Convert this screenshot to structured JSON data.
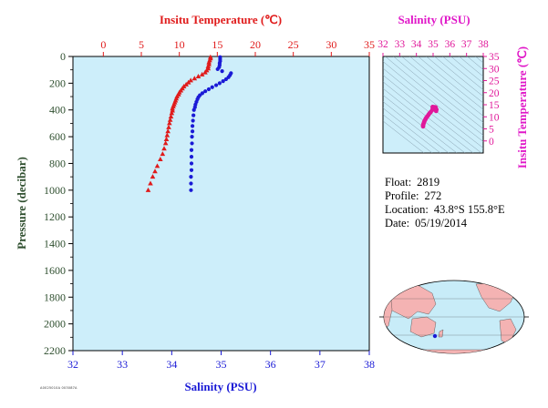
{
  "colors": {
    "temperature": "#e01b1b",
    "salinity": "#1a1ad6",
    "ts": "#e0189a",
    "pressure_axis": "#2f4f2f",
    "plot_bg": "#cdeefa",
    "land": "#f4b3b3",
    "ocean": "#c8ecf8"
  },
  "chart_data": [
    {
      "type": "scatter",
      "name": "profile",
      "title": "",
      "top_axis": {
        "label": "Insitu Temperature (℃)",
        "range": [
          -4,
          35
        ],
        "ticks": [
          0,
          5,
          10,
          15,
          20,
          25,
          30,
          35
        ]
      },
      "bottom_axis": {
        "label": "Salinity (PSU)",
        "range": [
          32,
          38
        ],
        "ticks": [
          32,
          33,
          34,
          35,
          36,
          37,
          38
        ]
      },
      "y_axis": {
        "label": "Pressure (decibar)",
        "range": [
          0,
          2200
        ],
        "inverted": true,
        "ticks": [
          0,
          200,
          400,
          600,
          800,
          1000,
          1200,
          1400,
          1600,
          1800,
          2000,
          2200
        ]
      },
      "grid": false,
      "series": [
        {
          "name": "Insitu Temperature (℃)",
          "axis": "top",
          "marker": "triangle",
          "points": [
            [
              14.1,
              5
            ],
            [
              14.1,
              15
            ],
            [
              14.0,
              30
            ],
            [
              13.9,
              45
            ],
            [
              13.9,
              60
            ],
            [
              13.8,
              75
            ],
            [
              13.8,
              90
            ],
            [
              13.6,
              105
            ],
            [
              13.4,
              120
            ],
            [
              13.0,
              135
            ],
            [
              12.5,
              150
            ],
            [
              12.0,
              165
            ],
            [
              11.5,
              180
            ],
            [
              11.2,
              195
            ],
            [
              10.9,
              210
            ],
            [
              10.6,
              225
            ],
            [
              10.4,
              240
            ],
            [
              10.2,
              255
            ],
            [
              10.0,
              270
            ],
            [
              9.9,
              285
            ],
            [
              9.7,
              300
            ],
            [
              9.6,
              315
            ],
            [
              9.5,
              330
            ],
            [
              9.4,
              345
            ],
            [
              9.3,
              360
            ],
            [
              9.2,
              375
            ],
            [
              9.1,
              390
            ],
            [
              9.1,
              405
            ],
            [
              9.0,
              425
            ],
            [
              8.9,
              450
            ],
            [
              8.8,
              475
            ],
            [
              8.7,
              500
            ],
            [
              8.6,
              530
            ],
            [
              8.5,
              560
            ],
            [
              8.4,
              590
            ],
            [
              8.3,
              620
            ],
            [
              8.2,
              650
            ],
            [
              8.0,
              690
            ],
            [
              7.8,
              730
            ],
            [
              7.5,
              770
            ],
            [
              7.1,
              820
            ],
            [
              6.8,
              860
            ],
            [
              6.5,
              900
            ],
            [
              6.2,
              950
            ],
            [
              5.9,
              1000
            ]
          ]
        },
        {
          "name": "Salinity (PSU)",
          "axis": "bottom",
          "marker": "circle",
          "points": [
            [
              34.98,
              5
            ],
            [
              34.98,
              20
            ],
            [
              34.98,
              35
            ],
            [
              34.97,
              50
            ],
            [
              34.97,
              65
            ],
            [
              34.96,
              80
            ],
            [
              34.93,
              95
            ],
            [
              35.02,
              110
            ],
            [
              35.2,
              125
            ],
            [
              35.18,
              140
            ],
            [
              35.15,
              155
            ],
            [
              35.1,
              170
            ],
            [
              35.04,
              185
            ],
            [
              34.97,
              200
            ],
            [
              34.9,
              215
            ],
            [
              34.82,
              230
            ],
            [
              34.75,
              245
            ],
            [
              34.68,
              260
            ],
            [
              34.62,
              275
            ],
            [
              34.57,
              290
            ],
            [
              34.54,
              305
            ],
            [
              34.52,
              320
            ],
            [
              34.5,
              340
            ],
            [
              34.48,
              360
            ],
            [
              34.47,
              380
            ],
            [
              34.45,
              400
            ],
            [
              34.44,
              440
            ],
            [
              34.43,
              480
            ],
            [
              34.42,
              520
            ],
            [
              34.42,
              560
            ],
            [
              34.41,
              600
            ],
            [
              34.41,
              650
            ],
            [
              34.4,
              700
            ],
            [
              34.4,
              750
            ],
            [
              34.4,
              800
            ],
            [
              34.4,
              850
            ],
            [
              34.39,
              900
            ],
            [
              34.39,
              950
            ],
            [
              34.39,
              1000
            ]
          ]
        }
      ]
    },
    {
      "type": "scatter",
      "name": "ts-diagram",
      "title": "",
      "top_axis": {
        "label": "Salinity (PSU)",
        "range": [
          32,
          38
        ],
        "ticks": [
          32,
          33,
          34,
          35,
          36,
          37,
          38
        ]
      },
      "right_axis": {
        "label": "Insitu Temperature (℃)",
        "range": [
          -5,
          35
        ],
        "ticks": [
          0,
          5,
          10,
          15,
          20,
          25,
          30,
          35
        ]
      },
      "grid": false,
      "points": [
        [
          34.4,
          6.0
        ],
        [
          34.4,
          6.5
        ],
        [
          34.42,
          7.0
        ],
        [
          34.45,
          7.6
        ],
        [
          34.48,
          8.2
        ],
        [
          34.52,
          8.7
        ],
        [
          34.56,
          9.2
        ],
        [
          34.6,
          9.7
        ],
        [
          34.66,
          10.2
        ],
        [
          34.72,
          10.8
        ],
        [
          34.78,
          11.4
        ],
        [
          34.86,
          12.0
        ],
        [
          34.95,
          12.8
        ],
        [
          35.05,
          13.4
        ],
        [
          35.15,
          13.9
        ],
        [
          35.1,
          14.0
        ],
        [
          35.0,
          14.0
        ],
        [
          34.97,
          14.1
        ],
        [
          34.98,
          13.6
        ],
        [
          35.2,
          13.0
        ],
        [
          35.18,
          12.4
        ]
      ]
    }
  ],
  "info": {
    "float_label": "Float:",
    "float_value": "2819",
    "profile_label": "Profile:",
    "profile_value": "272",
    "location_label": "Location:",
    "location_value": "43.8°S  155.8°E",
    "date_label": "Date:",
    "date_value": "05/19/2014"
  },
  "footer_code": "A0025010A 003087A"
}
